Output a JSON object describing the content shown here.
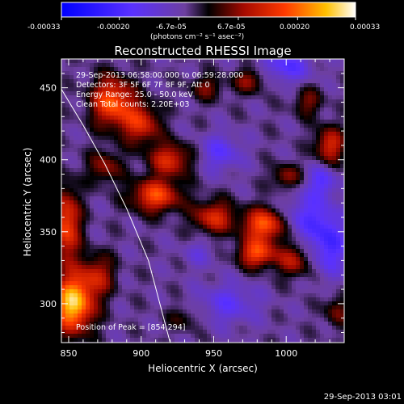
{
  "title": "Reconstructed RHESSI Image",
  "footer_timestamp": "29-Sep-2013 03:01",
  "colorbar": {
    "tick_labels": [
      "-0.00033",
      "-0.00020",
      "-6.7e-05",
      "6.7e-05",
      "0.00020",
      "0.00033"
    ],
    "unit_label": "(photons cm⁻² s⁻¹ asec⁻²)",
    "range": [
      -0.00033,
      0.00033
    ]
  },
  "info_lines": [
    "29-Sep-2013 06:58:00.000 to 06:59:28.000",
    "Detectors: 3F 5F 6F 7F 8F 9F, Att 0",
    "Energy Range: 25.0 - 50.0 keV",
    "Clean    Total counts: 2.20E+03"
  ],
  "peak_label": "Position of Peak = [854,294]",
  "chart_data": {
    "type": "heatmap",
    "title": "Reconstructed RHESSI Image",
    "xlabel": "Heliocentric X (arcsec)",
    "ylabel": "Heliocentric Y (arcsec)",
    "xlim": [
      845,
      1040
    ],
    "ylim": [
      273,
      470
    ],
    "x_ticks": [
      850,
      900,
      950,
      1000
    ],
    "y_ticks": [
      300,
      350,
      400,
      450
    ],
    "colormap": "hot-blue diverging",
    "value_range": [
      -0.00033,
      0.00033
    ],
    "peak_position": [
      854,
      294
    ],
    "limb_curve": [
      [
        845,
        449
      ],
      [
        860,
        424
      ],
      [
        875,
        397
      ],
      [
        890,
        366
      ],
      [
        905,
        330
      ],
      [
        920,
        273
      ]
    ],
    "blobs": [
      {
        "x": 853,
        "y": 300,
        "amp": 0.00033,
        "sx": 10,
        "sy": 14
      },
      {
        "x": 848,
        "y": 355,
        "amp": 0.00022,
        "sx": 7,
        "sy": 18
      },
      {
        "x": 870,
        "y": 320,
        "amp": 0.00014,
        "sx": 8,
        "sy": 10
      },
      {
        "x": 880,
        "y": 440,
        "amp": 0.00024,
        "sx": 10,
        "sy": 12
      },
      {
        "x": 900,
        "y": 425,
        "amp": 0.00018,
        "sx": 9,
        "sy": 10
      },
      {
        "x": 920,
        "y": 400,
        "amp": 0.00018,
        "sx": 10,
        "sy": 8
      },
      {
        "x": 910,
        "y": 375,
        "amp": 0.00022,
        "sx": 12,
        "sy": 8
      },
      {
        "x": 950,
        "y": 360,
        "amp": 0.00018,
        "sx": 10,
        "sy": 8
      },
      {
        "x": 985,
        "y": 355,
        "amp": 0.00024,
        "sx": 10,
        "sy": 8
      },
      {
        "x": 980,
        "y": 335,
        "amp": 0.00022,
        "sx": 9,
        "sy": 7
      },
      {
        "x": 1005,
        "y": 330,
        "amp": 0.00014,
        "sx": 8,
        "sy": 8
      },
      {
        "x": 1000,
        "y": 388,
        "amp": 0.00012,
        "sx": 7,
        "sy": 6
      },
      {
        "x": 1030,
        "y": 410,
        "amp": 0.00018,
        "sx": 7,
        "sy": 9
      },
      {
        "x": 1015,
        "y": 440,
        "amp": 0.0001,
        "sx": 7,
        "sy": 7
      },
      {
        "x": 975,
        "y": 455,
        "amp": 0.00012,
        "sx": 8,
        "sy": 6
      },
      {
        "x": 945,
        "y": 450,
        "amp": 0.0001,
        "sx": 8,
        "sy": 6
      },
      {
        "x": 875,
        "y": 395,
        "amp": 0.00012,
        "sx": 8,
        "sy": 8
      },
      {
        "x": 1035,
        "y": 295,
        "amp": 0.0001,
        "sx": 6,
        "sy": 8
      },
      {
        "x": 930,
        "y": 290,
        "amp": 7e-05,
        "sx": 8,
        "sy": 6
      },
      {
        "x": 1015,
        "y": 360,
        "amp": -0.00012,
        "sx": 12,
        "sy": 12
      },
      {
        "x": 1030,
        "y": 340,
        "amp": -0.00015,
        "sx": 8,
        "sy": 14
      },
      {
        "x": 960,
        "y": 300,
        "amp": -0.0001,
        "sx": 15,
        "sy": 10
      },
      {
        "x": 955,
        "y": 405,
        "amp": -0.00011,
        "sx": 10,
        "sy": 9
      },
      {
        "x": 1000,
        "y": 465,
        "amp": -0.00013,
        "sx": 12,
        "sy": 8
      },
      {
        "x": 1025,
        "y": 385,
        "amp": -0.00012,
        "sx": 7,
        "sy": 8
      },
      {
        "x": 940,
        "y": 335,
        "amp": -6e-05,
        "sx": 8,
        "sy": 7
      }
    ]
  }
}
